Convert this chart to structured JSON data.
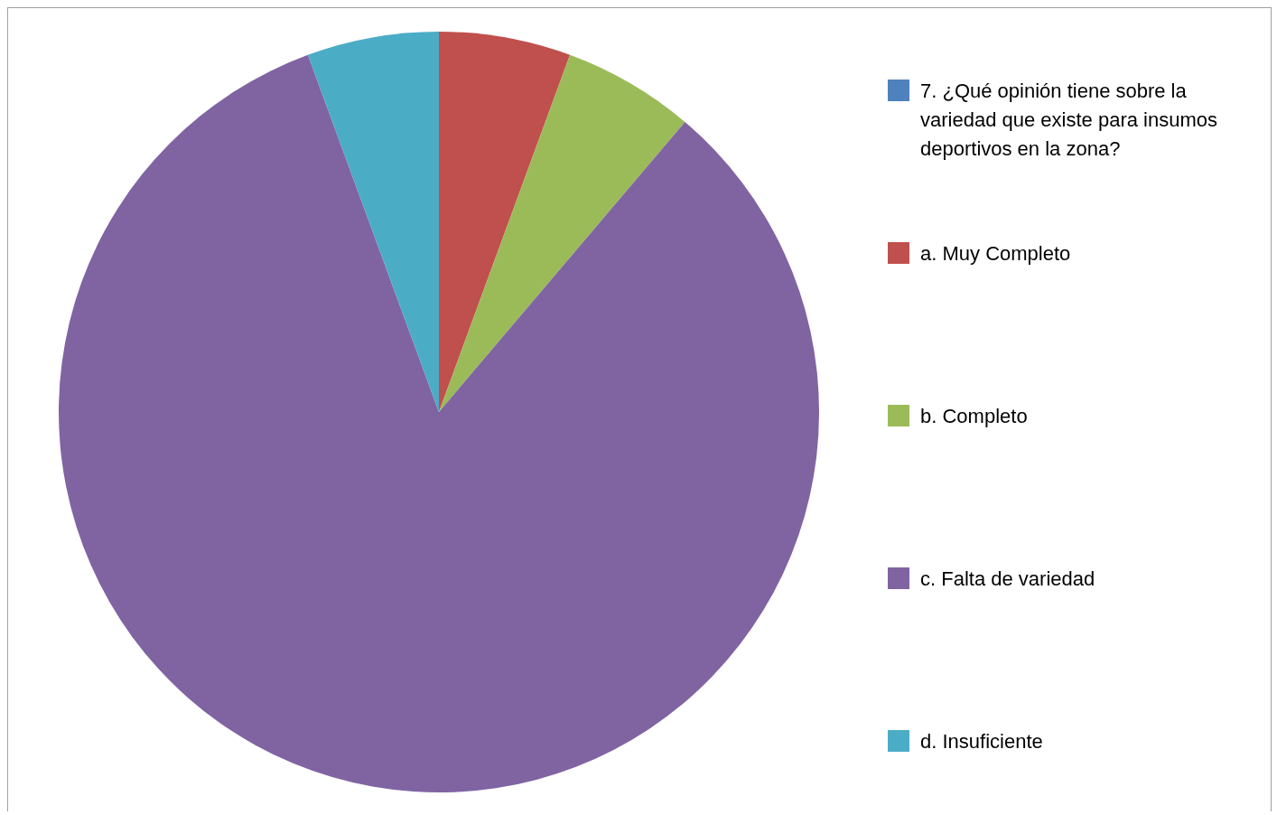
{
  "chart_data": {
    "type": "pie",
    "categories": [
      "7. ¿Qué opinión tiene sobre la variedad que existe para insumos deportivos en la zona?",
      "a. Muy Completo",
      "b. Completo",
      "c. Falta de variedad",
      "d. Insuficiente"
    ],
    "values": [
      0,
      5.6,
      5.6,
      83.2,
      5.6
    ],
    "colors": [
      "#4f81bd",
      "#c0504d",
      "#9bbb59",
      "#8064a2",
      "#4bacc6"
    ],
    "legend": "right"
  }
}
